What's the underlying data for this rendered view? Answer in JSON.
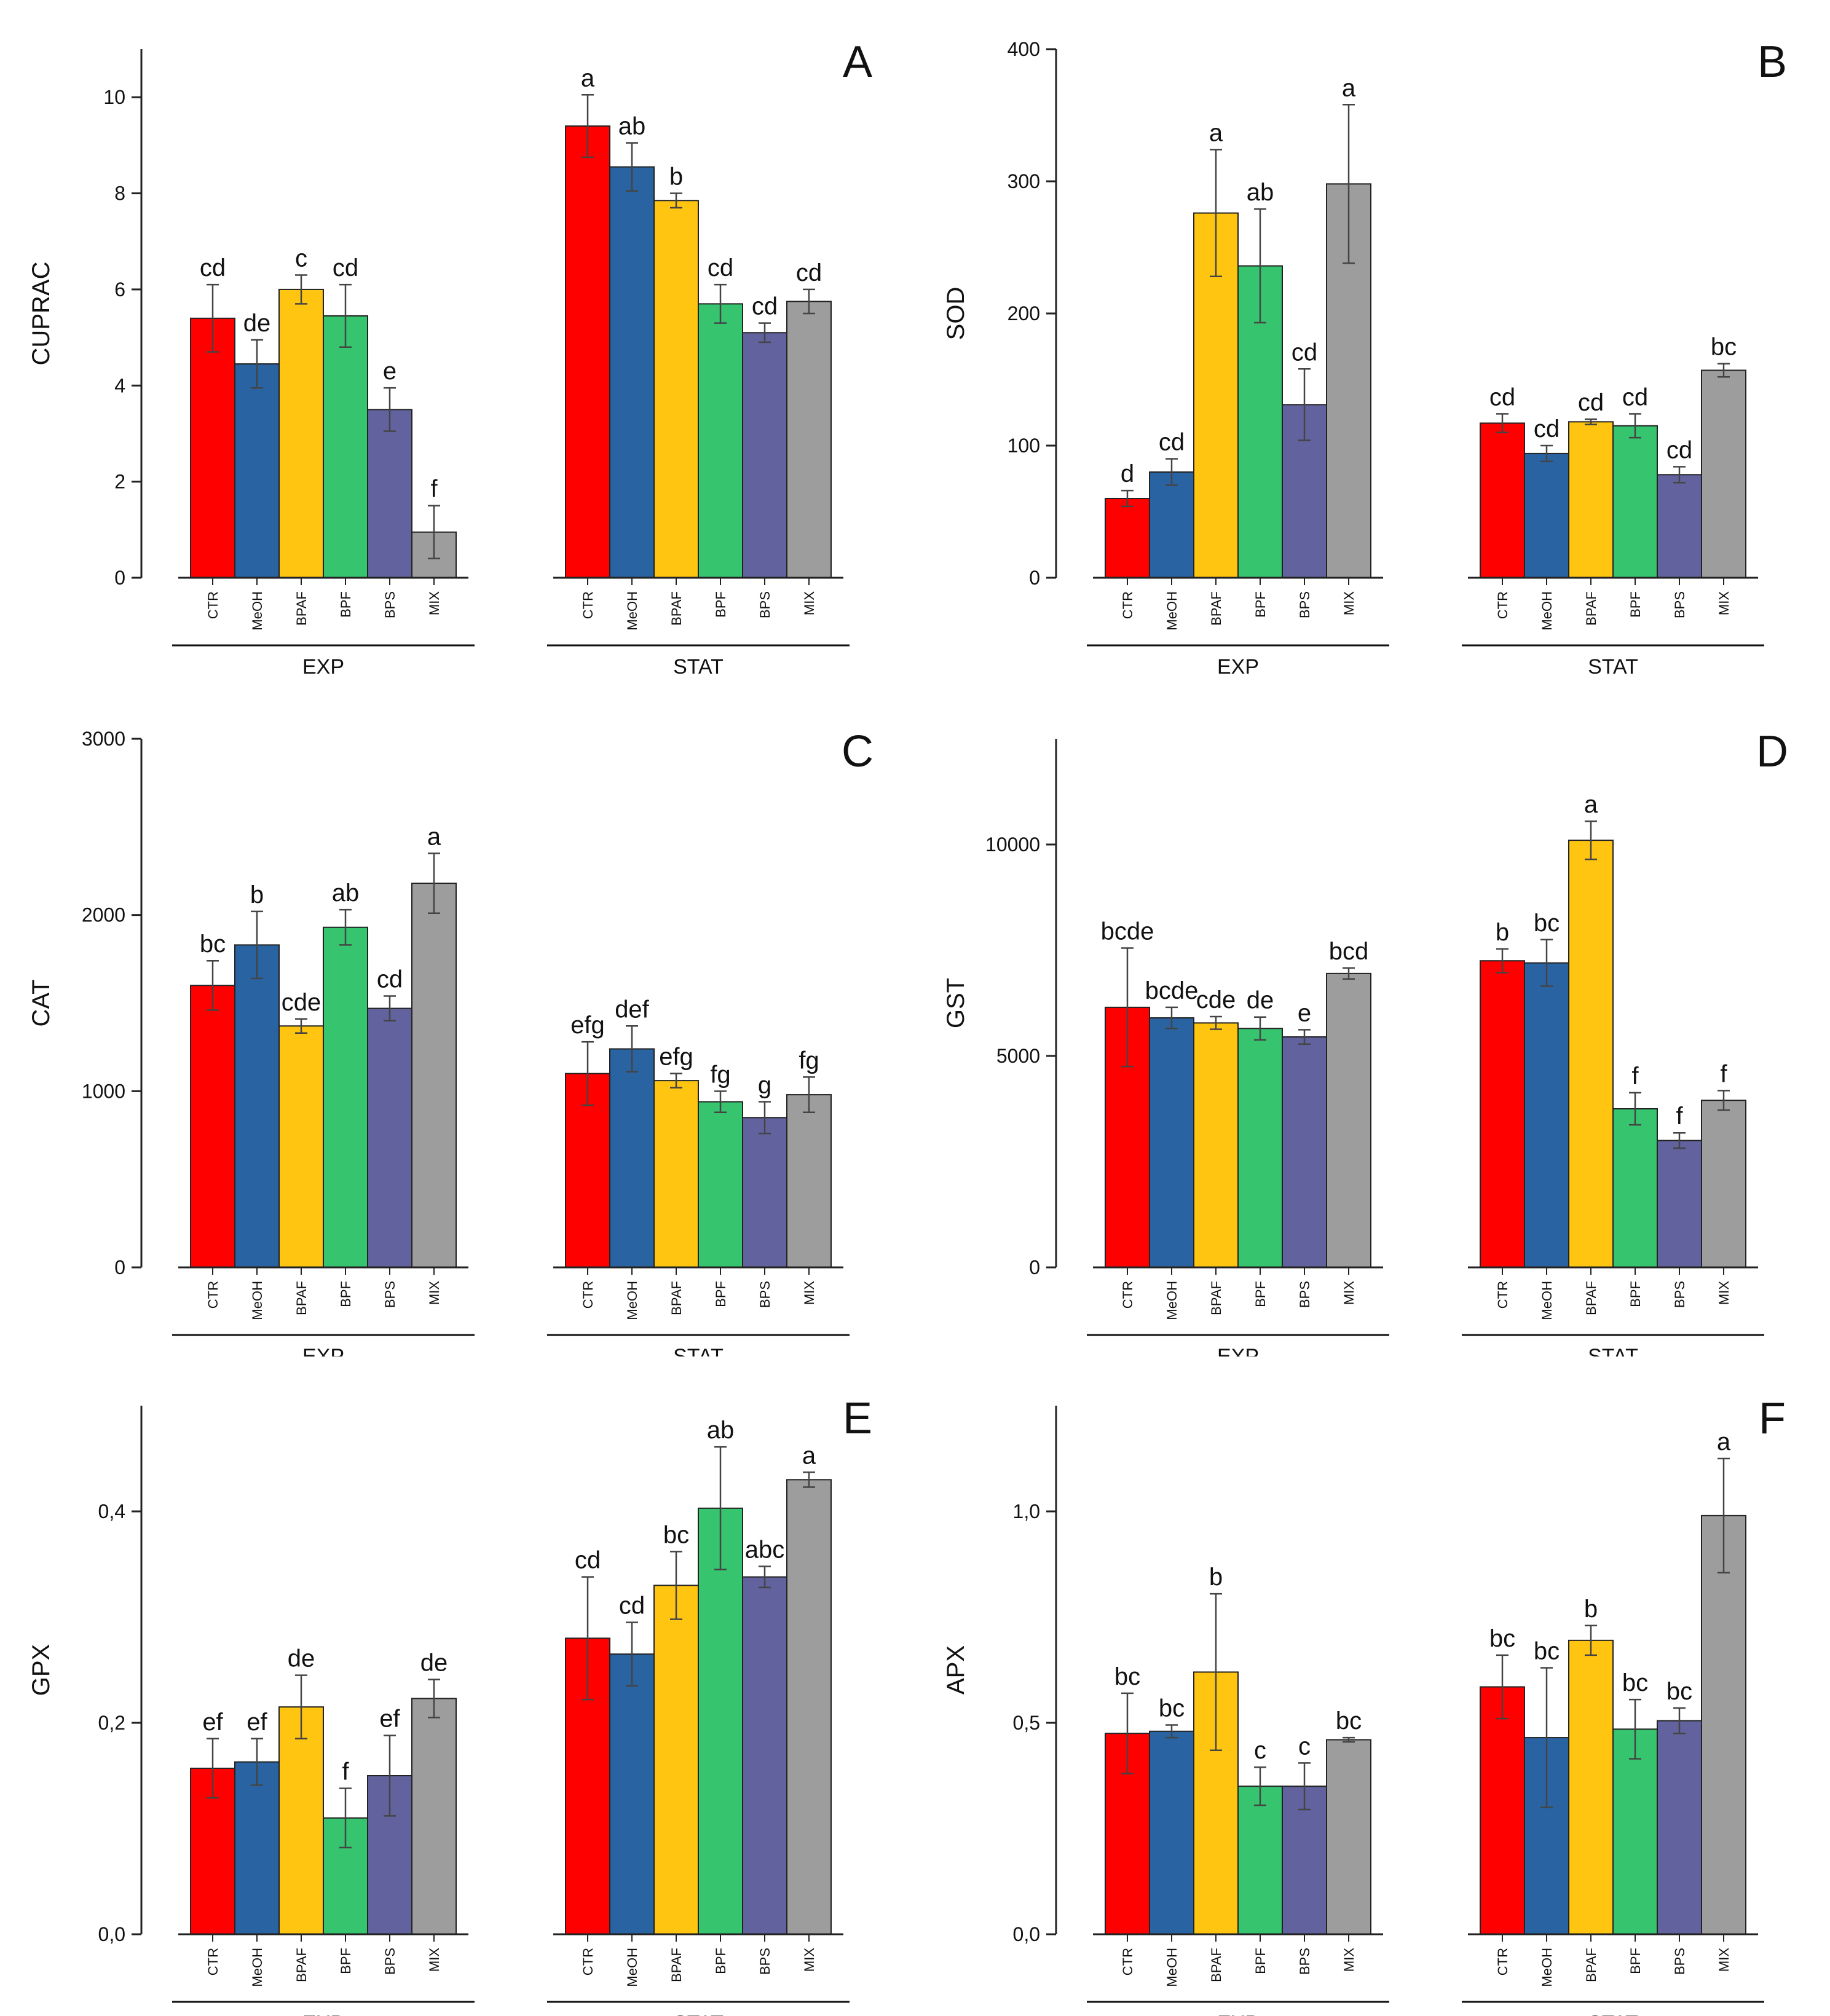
{
  "colors": {
    "CTR": "#ff0000",
    "MeOH": "#2a63a2",
    "BPAF": "#ffc510",
    "BPF": "#36c46f",
    "BPS": "#62629e",
    "MIX": "#9d9d9d"
  },
  "chart_data": [
    {
      "type": "bar",
      "panel_letter": "A",
      "ylabel": "CUPRAC",
      "ylim": [
        0,
        11
      ],
      "yticks": [
        "0",
        "2",
        "4",
        "6",
        "8",
        "10"
      ],
      "ytick_values": [
        0,
        2,
        4,
        6,
        8,
        10
      ],
      "groups": [
        {
          "label": "EXP",
          "bars": [
            {
              "name": "CTR",
              "value": 5.4,
              "error": 0.7,
              "letter": "cd"
            },
            {
              "name": "MeOH",
              "value": 4.45,
              "error": 0.5,
              "letter": "de"
            },
            {
              "name": "BPAF",
              "value": 6.0,
              "error": 0.3,
              "letter": "c"
            },
            {
              "name": "BPF",
              "value": 5.45,
              "error": 0.65,
              "letter": "cd"
            },
            {
              "name": "BPS",
              "value": 3.5,
              "error": 0.45,
              "letter": "e"
            },
            {
              "name": "MIX",
              "value": 0.95,
              "error": 0.55,
              "letter": "f"
            }
          ]
        },
        {
          "label": "STAT",
          "bars": [
            {
              "name": "CTR",
              "value": 9.4,
              "error": 0.65,
              "letter": "a"
            },
            {
              "name": "MeOH",
              "value": 8.55,
              "error": 0.5,
              "letter": "ab"
            },
            {
              "name": "BPAF",
              "value": 7.85,
              "error": 0.15,
              "letter": "b"
            },
            {
              "name": "BPF",
              "value": 5.7,
              "error": 0.4,
              "letter": "cd"
            },
            {
              "name": "BPS",
              "value": 5.1,
              "error": 0.2,
              "letter": "cd"
            },
            {
              "name": "MIX",
              "value": 5.75,
              "error": 0.25,
              "letter": "cd"
            }
          ]
        }
      ]
    },
    {
      "type": "bar",
      "panel_letter": "B",
      "ylabel": "SOD",
      "ylim": [
        0,
        400
      ],
      "yticks": [
        "0",
        "100",
        "200",
        "300",
        "400"
      ],
      "ytick_values": [
        0,
        100,
        200,
        300,
        400
      ],
      "groups": [
        {
          "label": "EXP",
          "bars": [
            {
              "name": "CTR",
              "value": 60,
              "error": 6,
              "letter": "d"
            },
            {
              "name": "MeOH",
              "value": 80,
              "error": 10,
              "letter": "cd"
            },
            {
              "name": "BPAF",
              "value": 276,
              "error": 48,
              "letter": "a"
            },
            {
              "name": "BPF",
              "value": 236,
              "error": 43,
              "letter": "ab"
            },
            {
              "name": "BPS",
              "value": 131,
              "error": 27,
              "letter": "cd"
            },
            {
              "name": "MIX",
              "value": 298,
              "error": 60,
              "letter": "a"
            }
          ]
        },
        {
          "label": "STAT",
          "bars": [
            {
              "name": "CTR",
              "value": 117,
              "error": 7,
              "letter": "cd"
            },
            {
              "name": "MeOH",
              "value": 94,
              "error": 6,
              "letter": "cd"
            },
            {
              "name": "BPAF",
              "value": 118,
              "error": 2,
              "letter": "cd"
            },
            {
              "name": "BPF",
              "value": 115,
              "error": 9,
              "letter": "cd"
            },
            {
              "name": "BPS",
              "value": 78,
              "error": 6,
              "letter": "cd"
            },
            {
              "name": "MIX",
              "value": 157,
              "error": 5,
              "letter": "bc"
            }
          ]
        }
      ]
    },
    {
      "type": "bar",
      "panel_letter": "C",
      "ylabel": "CAT",
      "ylim": [
        0,
        3000
      ],
      "yticks": [
        "0",
        "1000",
        "2000",
        "3000"
      ],
      "ytick_values": [
        0,
        1000,
        2000,
        3000
      ],
      "groups": [
        {
          "label": "EXP",
          "bars": [
            {
              "name": "CTR",
              "value": 1600,
              "error": 140,
              "letter": "bc"
            },
            {
              "name": "MeOH",
              "value": 1830,
              "error": 190,
              "letter": "b"
            },
            {
              "name": "BPAF",
              "value": 1370,
              "error": 40,
              "letter": "cde"
            },
            {
              "name": "BPF",
              "value": 1930,
              "error": 100,
              "letter": "ab"
            },
            {
              "name": "BPS",
              "value": 1470,
              "error": 70,
              "letter": "cd"
            },
            {
              "name": "MIX",
              "value": 2180,
              "error": 170,
              "letter": "a"
            }
          ]
        },
        {
          "label": "STAT",
          "bars": [
            {
              "name": "CTR",
              "value": 1100,
              "error": 180,
              "letter": "efg"
            },
            {
              "name": "MeOH",
              "value": 1240,
              "error": 130,
              "letter": "def"
            },
            {
              "name": "BPAF",
              "value": 1060,
              "error": 40,
              "letter": "efg"
            },
            {
              "name": "BPF",
              "value": 940,
              "error": 60,
              "letter": "fg"
            },
            {
              "name": "BPS",
              "value": 850,
              "error": 90,
              "letter": "g"
            },
            {
              "name": "MIX",
              "value": 980,
              "error": 100,
              "letter": "fg"
            }
          ]
        }
      ]
    },
    {
      "type": "bar",
      "panel_letter": "D",
      "ylabel": "GST",
      "ylim": [
        0,
        12500
      ],
      "yticks": [
        "0",
        "5000",
        "10000"
      ],
      "ytick_values": [
        0,
        5000,
        10000
      ],
      "groups": [
        {
          "label": "EXP",
          "bars": [
            {
              "name": "CTR",
              "value": 6150,
              "error": 1400,
              "letter": "bcde"
            },
            {
              "name": "MeOH",
              "value": 5900,
              "error": 250,
              "letter": "bcde"
            },
            {
              "name": "BPAF",
              "value": 5780,
              "error": 150,
              "letter": "cde"
            },
            {
              "name": "BPF",
              "value": 5650,
              "error": 270,
              "letter": "de"
            },
            {
              "name": "BPS",
              "value": 5450,
              "error": 170,
              "letter": "e"
            },
            {
              "name": "MIX",
              "value": 6950,
              "error": 130,
              "letter": "bcd"
            }
          ]
        },
        {
          "label": "STAT",
          "bars": [
            {
              "name": "CTR",
              "value": 7250,
              "error": 280,
              "letter": "b"
            },
            {
              "name": "MeOH",
              "value": 7200,
              "error": 550,
              "letter": "bc"
            },
            {
              "name": "BPAF",
              "value": 10100,
              "error": 450,
              "letter": "a"
            },
            {
              "name": "BPF",
              "value": 3750,
              "error": 380,
              "letter": "f"
            },
            {
              "name": "BPS",
              "value": 3000,
              "error": 180,
              "letter": "f"
            },
            {
              "name": "MIX",
              "value": 3950,
              "error": 230,
              "letter": "f"
            }
          ]
        }
      ]
    },
    {
      "type": "bar",
      "panel_letter": "E",
      "ylabel": "GPX",
      "ylim": [
        0,
        0.5
      ],
      "yticks": [
        "0,0",
        "0,2",
        "0,4"
      ],
      "ytick_values": [
        0,
        0.2,
        0.4
      ],
      "groups": [
        {
          "label": "EXP",
          "bars": [
            {
              "name": "CTR",
              "value": 0.157,
              "error": 0.028,
              "letter": "ef"
            },
            {
              "name": "MeOH",
              "value": 0.163,
              "error": 0.022,
              "letter": "ef"
            },
            {
              "name": "BPAF",
              "value": 0.215,
              "error": 0.03,
              "letter": "de"
            },
            {
              "name": "BPF",
              "value": 0.11,
              "error": 0.028,
              "letter": "f"
            },
            {
              "name": "BPS",
              "value": 0.15,
              "error": 0.038,
              "letter": "ef"
            },
            {
              "name": "MIX",
              "value": 0.223,
              "error": 0.018,
              "letter": "de"
            }
          ]
        },
        {
          "label": "STAT",
          "bars": [
            {
              "name": "CTR",
              "value": 0.28,
              "error": 0.058,
              "letter": "cd"
            },
            {
              "name": "MeOH",
              "value": 0.265,
              "error": 0.03,
              "letter": "cd"
            },
            {
              "name": "BPAF",
              "value": 0.33,
              "error": 0.032,
              "letter": "bc"
            },
            {
              "name": "BPF",
              "value": 0.403,
              "error": 0.058,
              "letter": "ab"
            },
            {
              "name": "BPS",
              "value": 0.338,
              "error": 0.01,
              "letter": "abc"
            },
            {
              "name": "MIX",
              "value": 0.43,
              "error": 0.007,
              "letter": "a"
            }
          ]
        }
      ]
    },
    {
      "type": "bar",
      "panel_letter": "F",
      "ylabel": "APX",
      "ylim": [
        0,
        1.25
      ],
      "yticks": [
        "0,0",
        "0,5",
        "1,0"
      ],
      "ytick_values": [
        0,
        0.5,
        1.0
      ],
      "groups": [
        {
          "label": "EXP",
          "bars": [
            {
              "name": "CTR",
              "value": 0.475,
              "error": 0.095,
              "letter": "bc"
            },
            {
              "name": "MeOH",
              "value": 0.48,
              "error": 0.015,
              "letter": "bc"
            },
            {
              "name": "BPAF",
              "value": 0.62,
              "error": 0.185,
              "letter": "b"
            },
            {
              "name": "BPF",
              "value": 0.35,
              "error": 0.045,
              "letter": "c"
            },
            {
              "name": "BPS",
              "value": 0.35,
              "error": 0.055,
              "letter": "c"
            },
            {
              "name": "MIX",
              "value": 0.46,
              "error": 0.005,
              "letter": "bc"
            }
          ]
        },
        {
          "label": "STAT",
          "bars": [
            {
              "name": "CTR",
              "value": 0.585,
              "error": 0.075,
              "letter": "bc"
            },
            {
              "name": "MeOH",
              "value": 0.465,
              "error": 0.165,
              "letter": "bc"
            },
            {
              "name": "BPAF",
              "value": 0.695,
              "error": 0.035,
              "letter": "b"
            },
            {
              "name": "BPF",
              "value": 0.485,
              "error": 0.07,
              "letter": "bc"
            },
            {
              "name": "BPS",
              "value": 0.505,
              "error": 0.03,
              "letter": "bc"
            },
            {
              "name": "MIX",
              "value": 0.99,
              "error": 0.135,
              "letter": "a"
            }
          ]
        }
      ]
    }
  ]
}
